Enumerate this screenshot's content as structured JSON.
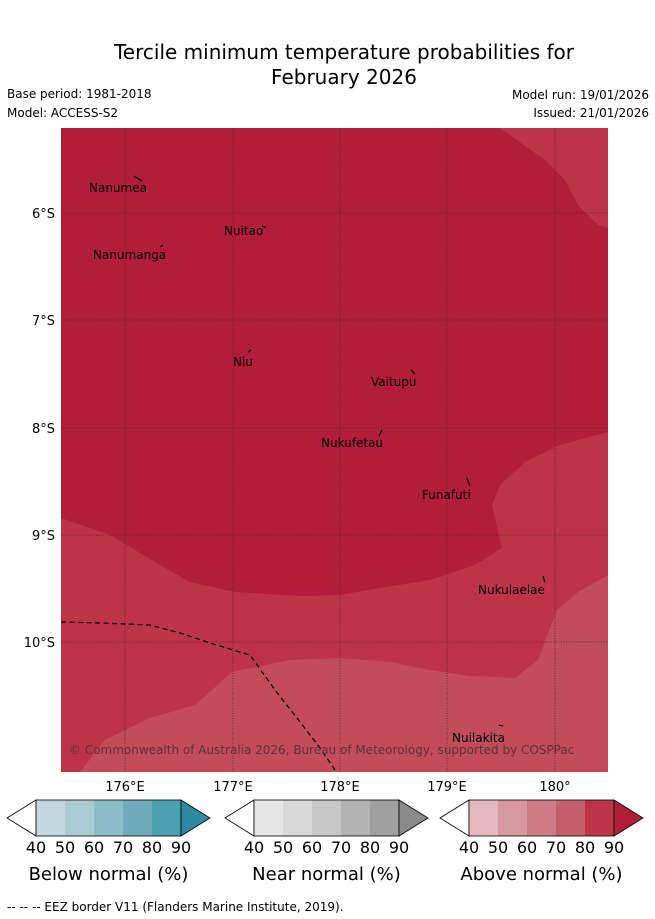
{
  "title_line1": "Tercile minimum temperature probabilities for",
  "title_line2": "February 2026",
  "base_period": "Base period: 1981-2018",
  "model": "Model: ACCESS-S2",
  "model_run": "Model run: 19/01/2026",
  "issued": "Issued: 21/01/2026",
  "lon_labels": [
    "176°E",
    "177°E",
    "178°E",
    "179°E",
    "180°"
  ],
  "lat_labels": [
    "6°S",
    "7°S",
    "8°S",
    "9°S",
    "10°S"
  ],
  "islands": [
    "Nanumea",
    "Nuitao",
    "Nanumanga",
    "Niu",
    "Vaitupu",
    "Nukufetau",
    "Funafuti",
    "Nukulaelae",
    "Nuilakita"
  ],
  "copyright": "© Commonwealth of Australia 2026, Bureau of Meteorology, supported by COSPPac",
  "colorbars": [
    {
      "label": "Below normal (%)",
      "colors": [
        "#ffffff",
        "#c3d9df",
        "#a9cdd3",
        "#8cbcc8",
        "#6dabbb",
        "#4a9fb0",
        "#2d8aa2"
      ]
    },
    {
      "label": "Near normal (%)",
      "colors": [
        "#ffffff",
        "#e6e6e6",
        "#d9d9d9",
        "#c8c8c8",
        "#b3b3b3",
        "#9f9f9f",
        "#8a8a8a"
      ]
    },
    {
      "label": "Above normal (%)",
      "colors": [
        "#ffffff",
        "#e4b8bf",
        "#d89aa2",
        "#cf7b85",
        "#c65f6c",
        "#bd3449",
        "#b01e39"
      ]
    }
  ],
  "ticks": [
    "40",
    "50",
    "60",
    "70",
    "80",
    "90"
  ],
  "footnote": "-- -- -- EEZ border V11 (Flanders Marine Institute, 2019).",
  "map_colors": {
    "dark": "#b01e39",
    "mid": "#bd3449",
    "light": "#c24c5a"
  }
}
